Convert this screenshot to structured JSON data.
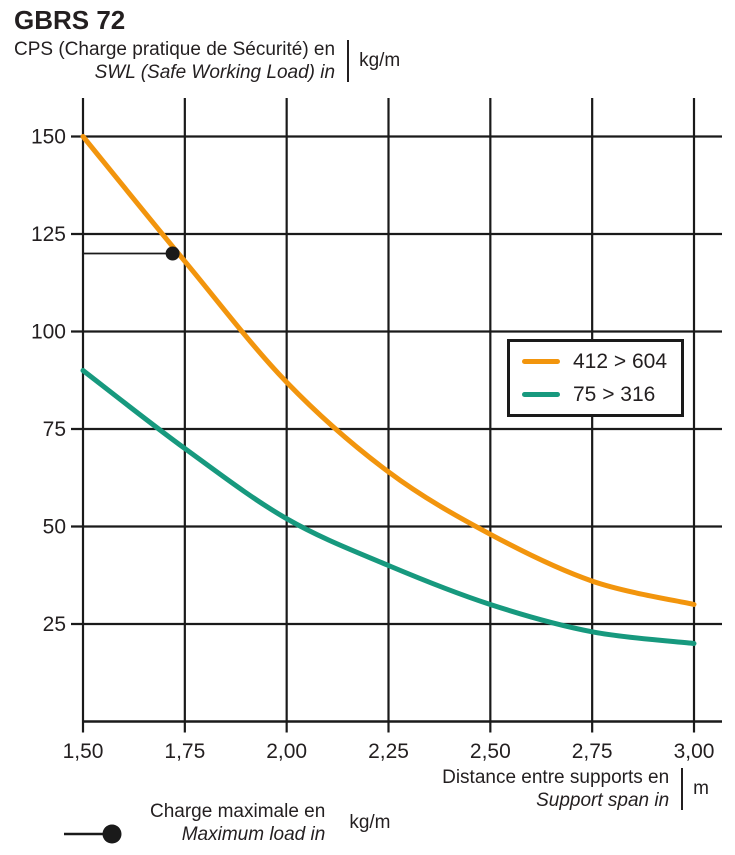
{
  "header": {
    "title": "GBRS 72",
    "ylabel_fr": "CPS (Charge pratique de Sécurité) en",
    "ylabel_en": "SWL (Safe Working Load) in",
    "unit": "kg/m"
  },
  "legend": {
    "items": [
      {
        "label": "412 > 604",
        "color": "#F2950D"
      },
      {
        "label": "75 > 316",
        "color": "#17997E"
      }
    ]
  },
  "footer": {
    "xlabel_fr": "Distance entre supports en",
    "xlabel_en": "Support span in",
    "x_unit": "m",
    "marker_label_fr": "Charge maximale en",
    "marker_label_en": "Maximum load in",
    "marker_unit": "kg/m"
  },
  "chart_data": {
    "type": "line",
    "title": "GBRS 72",
    "xlabel": "Distance entre supports en / Support span in (m)",
    "ylabel": "CPS (Charge pratique de Sécurité) / SWL (Safe Working Load) (kg/m)",
    "x": [
      1.5,
      1.75,
      2.0,
      2.25,
      2.5,
      2.75,
      3.0
    ],
    "x_tick_labels": [
      "1,50",
      "1,75",
      "2,00",
      "2,25",
      "2,50",
      "2,75",
      "3,00"
    ],
    "y_ticks": [
      25,
      50,
      75,
      100,
      125,
      150
    ],
    "xlim": [
      1.5,
      3.07
    ],
    "ylim": [
      0,
      160
    ],
    "grid": true,
    "legend_position": "upper right",
    "series": [
      {
        "name": "412 > 604",
        "color": "#F2950D",
        "values": [
          150,
          118,
          87,
          64,
          48,
          36,
          30
        ]
      },
      {
        "name": "75 > 316",
        "color": "#17997E",
        "values": [
          90,
          70,
          52,
          40,
          30,
          23,
          20
        ]
      }
    ],
    "marker_point": {
      "x": 1.72,
      "y": 120,
      "color": "#1a1a1a",
      "line_to_y_axis": true
    },
    "axis_color": "#1a1a1a"
  }
}
